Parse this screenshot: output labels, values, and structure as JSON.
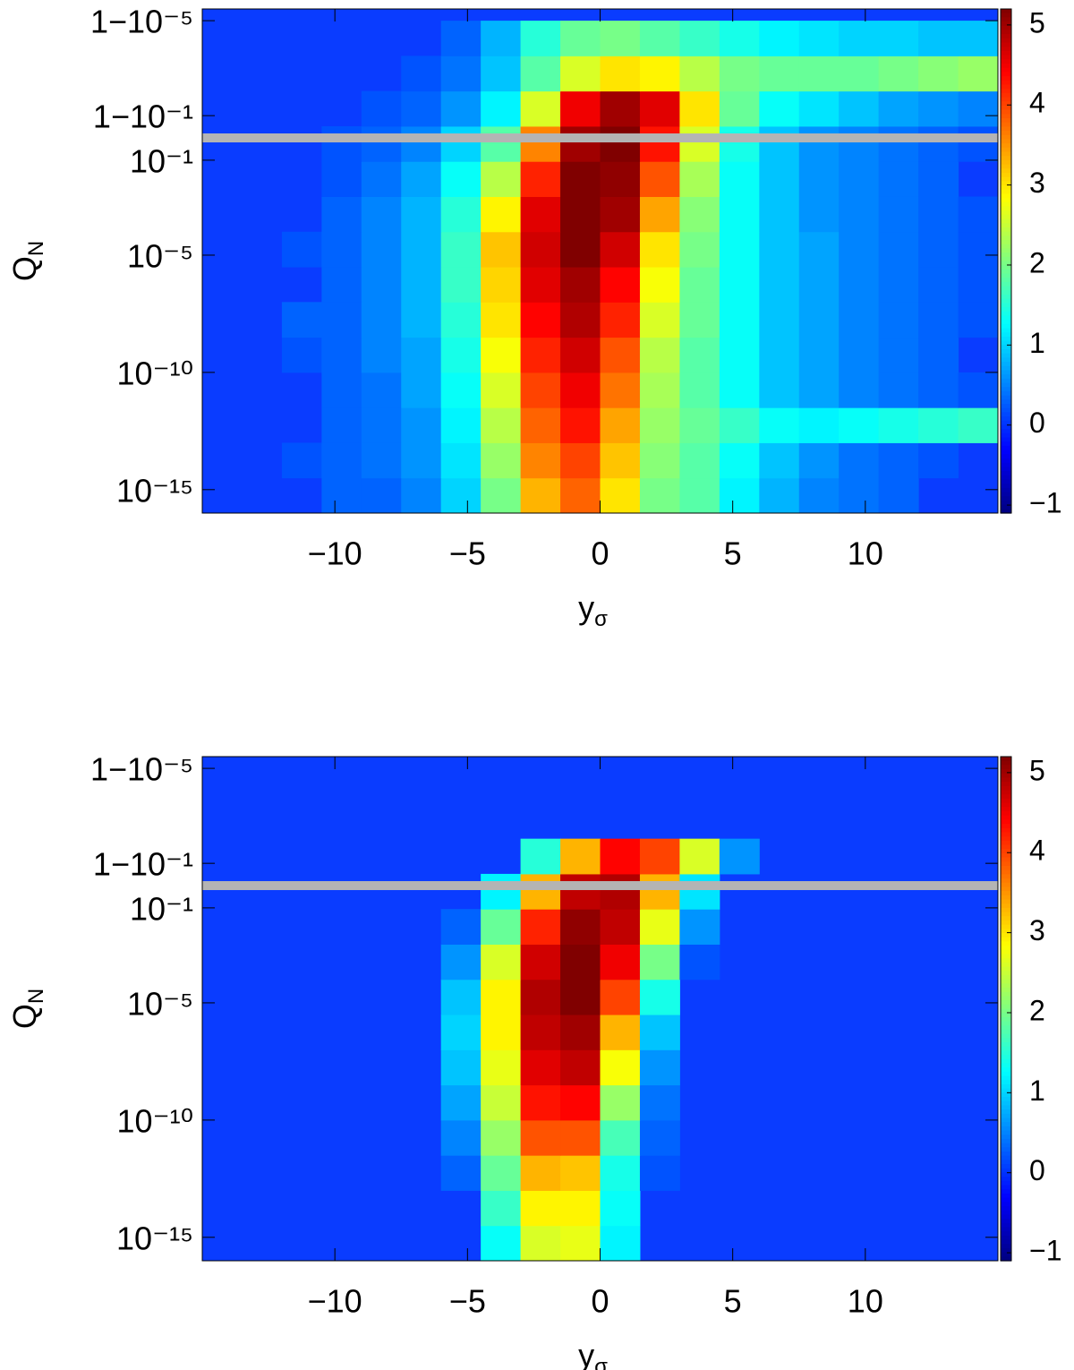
{
  "chart_data": [
    {
      "type": "heatmap",
      "xlabel": {
        "base": "y",
        "sub": "σ"
      },
      "ylabel": {
        "base": "Q",
        "sub": "N"
      },
      "xlim": [
        -15,
        15
      ],
      "ylim": [
        -16,
        5.5
      ],
      "xticks": [
        {
          "value": -10,
          "label": "−10"
        },
        {
          "value": -5,
          "label": "−5"
        },
        0,
        5,
        10
      ],
      "yticks": [
        {
          "value": 5,
          "label": "1−10⁻⁵"
        },
        {
          "value": 0.95,
          "label": "1−10⁻¹"
        },
        {
          "value": -0.95,
          "label": "10⁻¹"
        },
        {
          "value": -5,
          "label": "10⁻⁵"
        },
        {
          "value": -10,
          "label": "10⁻¹⁰"
        },
        {
          "value": -15,
          "label": "10⁻¹⁵"
        }
      ],
      "x_bins": [
        -15,
        -13.5,
        -12,
        -10.5,
        -9,
        -7.5,
        -6,
        -4.5,
        -3,
        -1.5,
        0,
        1.5,
        3,
        4.5,
        6,
        7.5,
        9,
        10.5,
        12,
        13.5,
        15
      ],
      "y_bins": [
        -16,
        -14.5,
        -13,
        -11.5,
        -10,
        -8.5,
        -7,
        -5.5,
        -4,
        -2.5,
        -1,
        0.5,
        2,
        3.5,
        5
      ],
      "z": [
        [
          null,
          null,
          null,
          0.3,
          0.3,
          0.5,
          1.0,
          2.0,
          3.3,
          3.8,
          3.0,
          2.0,
          1.8,
          1.2,
          0.8,
          0.5,
          0.4,
          0.3,
          null,
          null
        ],
        [
          null,
          null,
          0.2,
          0.3,
          0.4,
          0.6,
          1.1,
          2.2,
          3.6,
          4.0,
          3.2,
          2.1,
          1.8,
          1.3,
          0.9,
          0.6,
          0.4,
          0.3,
          0.2,
          null
        ],
        [
          null,
          null,
          null,
          0.3,
          0.4,
          0.6,
          1.2,
          2.4,
          3.8,
          4.3,
          3.4,
          2.2,
          1.9,
          1.6,
          1.3,
          1.2,
          1.3,
          1.4,
          1.5,
          1.6
        ],
        [
          null,
          null,
          null,
          0.3,
          0.4,
          0.7,
          1.3,
          2.6,
          4.0,
          4.5,
          3.7,
          2.3,
          1.8,
          1.3,
          0.9,
          0.7,
          0.5,
          0.4,
          0.3,
          0.2
        ],
        [
          null,
          null,
          0.2,
          0.3,
          0.5,
          0.7,
          1.4,
          2.8,
          4.2,
          4.7,
          3.9,
          2.4,
          1.8,
          1.3,
          0.9,
          0.7,
          0.5,
          0.4,
          0.3,
          null
        ],
        [
          null,
          null,
          0.3,
          0.3,
          0.5,
          0.8,
          1.5,
          3.0,
          4.4,
          4.9,
          4.2,
          2.6,
          1.9,
          1.3,
          0.9,
          0.7,
          0.5,
          0.4,
          0.3,
          0.2
        ],
        [
          null,
          null,
          null,
          0.3,
          0.5,
          0.8,
          1.6,
          3.1,
          4.6,
          5.0,
          4.4,
          2.8,
          1.9,
          1.3,
          0.9,
          0.7,
          0.5,
          0.4,
          0.3,
          0.2
        ],
        [
          null,
          null,
          0.2,
          0.3,
          0.5,
          0.8,
          1.6,
          3.2,
          4.7,
          5.2,
          4.7,
          3.0,
          2.0,
          1.3,
          0.9,
          0.7,
          0.5,
          0.4,
          0.3,
          0.2
        ],
        [
          null,
          null,
          null,
          0.3,
          0.5,
          0.8,
          1.5,
          2.9,
          4.6,
          5.2,
          5.0,
          3.4,
          2.1,
          1.3,
          0.9,
          0.6,
          0.5,
          0.4,
          0.3,
          0.2
        ],
        [
          null,
          null,
          null,
          0.2,
          0.4,
          0.7,
          1.3,
          2.4,
          4.2,
          5.2,
          5.1,
          3.9,
          2.3,
          1.3,
          0.9,
          0.6,
          0.5,
          0.4,
          0.3,
          null
        ],
        [
          null,
          null,
          null,
          0.2,
          0.3,
          0.5,
          1.0,
          1.8,
          3.6,
          5.0,
          5.2,
          4.3,
          2.6,
          1.4,
          0.9,
          0.6,
          0.5,
          0.4,
          0.3,
          0.2
        ],
        [
          null,
          null,
          null,
          null,
          0.2,
          0.3,
          0.6,
          1.2,
          2.6,
          4.5,
          5.0,
          4.6,
          3.0,
          1.9,
          1.3,
          1.1,
          0.9,
          0.7,
          0.6,
          0.5
        ],
        [
          null,
          null,
          null,
          null,
          null,
          0.2,
          0.4,
          0.9,
          1.8,
          2.6,
          3.0,
          2.9,
          2.4,
          2.0,
          1.9,
          1.9,
          1.9,
          2.0,
          2.1,
          2.2
        ],
        [
          null,
          null,
          null,
          null,
          null,
          null,
          0.3,
          0.8,
          1.5,
          1.9,
          2.0,
          1.8,
          1.6,
          1.4,
          1.2,
          1.1,
          1.0,
          1.0,
          0.9,
          0.9
        ]
      ],
      "colormap": "jet",
      "background_color": "#0a3cff",
      "mask": {
        "y": 0,
        "color": "#b4b4b4"
      },
      "colorbar": {
        "lim": [
          -1.1,
          5.2
        ],
        "ticks": [
          {
            "value": -1,
            "label": "−1"
          },
          0,
          1,
          2,
          3,
          4,
          5
        ]
      }
    },
    {
      "type": "heatmap",
      "xlabel": {
        "base": "y",
        "sub": "σ"
      },
      "ylabel": {
        "base": "Q",
        "sub": "N"
      },
      "xlim": [
        -15,
        15
      ],
      "ylim": [
        -16,
        5.5
      ],
      "xticks": [
        {
          "value": -10,
          "label": "−10"
        },
        {
          "value": -5,
          "label": "−5"
        },
        0,
        5,
        10
      ],
      "yticks": [
        {
          "value": 5,
          "label": "1−10⁻⁵"
        },
        {
          "value": 0.95,
          "label": "1−10⁻¹"
        },
        {
          "value": -0.95,
          "label": "10⁻¹"
        },
        {
          "value": -5,
          "label": "10⁻⁵"
        },
        {
          "value": -10,
          "label": "10⁻¹⁰"
        },
        {
          "value": -15,
          "label": "10⁻¹⁵"
        }
      ],
      "x_bins": [
        -15,
        -13.5,
        -12,
        -10.5,
        -9,
        -7.5,
        -6,
        -4.5,
        -3,
        -1.5,
        0,
        1.5,
        3,
        4.5,
        6,
        7.5,
        9,
        10.5,
        12,
        13.5,
        15
      ],
      "y_bins": [
        -16,
        -14.5,
        -13,
        -11.5,
        -10,
        -8.5,
        -7,
        -5.5,
        -4,
        -2.5,
        -1,
        0.5,
        2,
        3.5,
        5
      ],
      "z": [
        [
          null,
          null,
          null,
          null,
          null,
          null,
          null,
          1.3,
          2.6,
          2.7,
          1.2,
          null,
          null,
          null,
          null,
          null,
          null,
          null,
          null,
          null
        ],
        [
          null,
          null,
          null,
          null,
          null,
          null,
          null,
          1.6,
          2.9,
          2.9,
          1.3,
          null,
          null,
          null,
          null,
          null,
          null,
          null,
          null,
          null
        ],
        [
          null,
          null,
          null,
          null,
          null,
          null,
          0.3,
          1.9,
          3.3,
          3.2,
          1.4,
          0.2,
          null,
          null,
          null,
          null,
          null,
          null,
          null,
          null
        ],
        [
          null,
          null,
          null,
          null,
          null,
          null,
          0.5,
          2.2,
          3.9,
          3.9,
          1.7,
          0.3,
          null,
          null,
          null,
          null,
          null,
          null,
          null,
          null
        ],
        [
          null,
          null,
          null,
          null,
          null,
          null,
          0.7,
          2.5,
          4.3,
          4.4,
          2.2,
          0.4,
          null,
          null,
          null,
          null,
          null,
          null,
          null,
          null
        ],
        [
          null,
          null,
          null,
          null,
          null,
          null,
          0.9,
          2.7,
          4.6,
          4.8,
          2.8,
          0.6,
          null,
          null,
          null,
          null,
          null,
          null,
          null,
          null
        ],
        [
          null,
          null,
          null,
          null,
          null,
          null,
          1.0,
          2.9,
          4.8,
          5.0,
          3.3,
          0.9,
          null,
          null,
          null,
          null,
          null,
          null,
          null,
          null
        ],
        [
          null,
          null,
          null,
          null,
          null,
          null,
          0.9,
          2.9,
          4.9,
          5.2,
          4.0,
          1.4,
          null,
          null,
          null,
          null,
          null,
          null,
          null,
          null
        ],
        [
          null,
          null,
          null,
          null,
          null,
          null,
          0.6,
          2.6,
          4.7,
          5.2,
          4.5,
          2.0,
          0.2,
          null,
          null,
          null,
          null,
          null,
          null,
          null
        ],
        [
          null,
          null,
          null,
          null,
          null,
          null,
          0.3,
          1.9,
          4.2,
          5.1,
          4.8,
          2.7,
          0.6,
          null,
          null,
          null,
          null,
          null,
          null,
          null
        ],
        [
          null,
          null,
          null,
          null,
          null,
          null,
          null,
          1.2,
          3.3,
          4.8,
          4.9,
          3.3,
          1.1,
          null,
          null,
          null,
          null,
          null,
          null,
          null
        ],
        [
          null,
          null,
          null,
          null,
          null,
          null,
          null,
          null,
          1.5,
          3.3,
          4.4,
          4.0,
          2.6,
          0.6,
          null,
          null,
          null,
          null,
          null,
          null
        ],
        [
          null,
          null,
          null,
          null,
          null,
          null,
          null,
          null,
          null,
          null,
          null,
          null,
          null,
          null,
          null,
          null,
          null,
          null,
          null,
          null
        ],
        [
          null,
          null,
          null,
          null,
          null,
          null,
          null,
          null,
          null,
          null,
          null,
          null,
          null,
          null,
          null,
          null,
          null,
          null,
          null,
          null
        ]
      ],
      "colormap": "jet",
      "background_color": "#0a3cff",
      "mask": {
        "y": 0,
        "color": "#b4b4b4"
      },
      "colorbar": {
        "lim": [
          -1.1,
          5.2
        ],
        "ticks": [
          {
            "value": -1,
            "label": "−1"
          },
          0,
          1,
          2,
          3,
          4,
          5
        ]
      }
    }
  ]
}
